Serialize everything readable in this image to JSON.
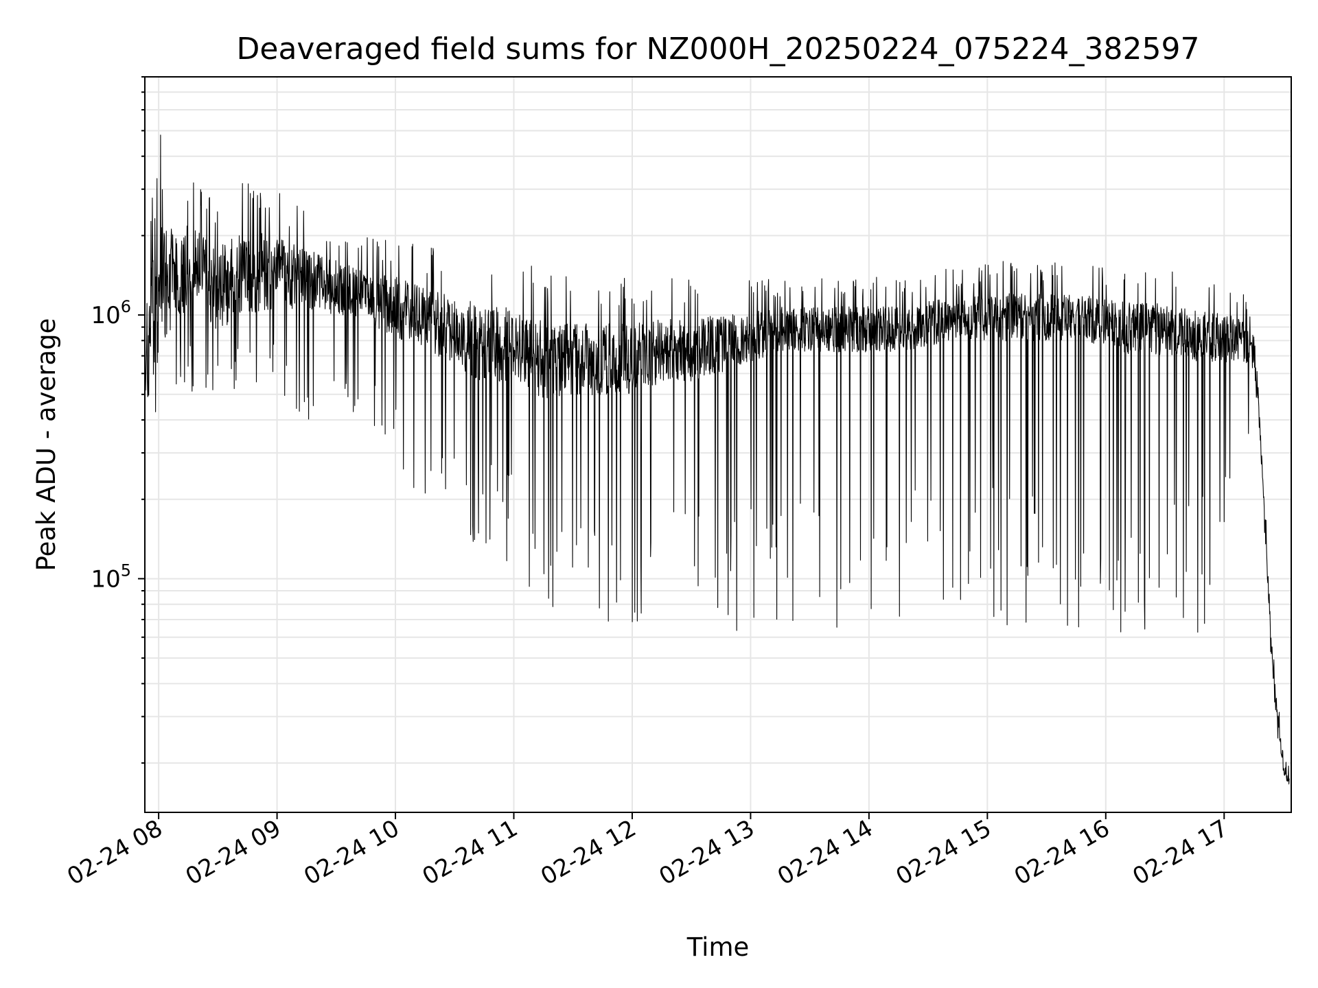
{
  "chart_data": {
    "type": "line",
    "title": "Deaveraged field sums for NZ000H_20250224_075224_382597",
    "xlabel": "Time",
    "ylabel": "Peak ADU - average",
    "x_tick_labels": [
      "02-24 08",
      "02-24 09",
      "02-24 10",
      "02-24 11",
      "02-24 12",
      "02-24 13",
      "02-24 14",
      "02-24 15",
      "02-24 16",
      "02-24 17"
    ],
    "y_tick_labels": [
      {
        "base": "10",
        "exp": "5",
        "value": 100000
      },
      {
        "base": "10",
        "exp": "6",
        "value": 1000000
      }
    ],
    "xlim": [
      "2025-02-24 07:53",
      "2025-02-24 17:34"
    ],
    "ylim": [
      13000,
      8000000
    ],
    "yscale": "log",
    "grid": true,
    "line_color": "#000000",
    "grid_color": "#e6e6e6",
    "series": [
      {
        "x": [
          "2025-02-24 07:53",
          "2025-02-24 08:00",
          "2025-02-24 08:15",
          "2025-02-24 08:30",
          "2025-02-24 08:45",
          "2025-02-24 09:00",
          "2025-02-24 09:15",
          "2025-02-24 09:30",
          "2025-02-24 09:45",
          "2025-02-24 10:00",
          "2025-02-24 10:15",
          "2025-02-24 10:30",
          "2025-02-24 10:45",
          "2025-02-24 11:00",
          "2025-02-24 11:15",
          "2025-02-24 11:30",
          "2025-02-24 11:45",
          "2025-02-24 12:00",
          "2025-02-24 12:15",
          "2025-02-24 12:30",
          "2025-02-24 12:45",
          "2025-02-24 13:00",
          "2025-02-24 13:15",
          "2025-02-24 13:30",
          "2025-02-24 13:45",
          "2025-02-24 14:00",
          "2025-02-24 14:15",
          "2025-02-24 14:30",
          "2025-02-24 14:45",
          "2025-02-24 15:00",
          "2025-02-24 15:15",
          "2025-02-24 15:30",
          "2025-02-24 15:45",
          "2025-02-24 16:00",
          "2025-02-24 16:15",
          "2025-02-24 16:30",
          "2025-02-24 16:45",
          "2025-02-24 17:00",
          "2025-02-24 17:10",
          "2025-02-24 17:15",
          "2025-02-24 17:18",
          "2025-02-24 17:21",
          "2025-02-24 17:24",
          "2025-02-24 17:27",
          "2025-02-24 17:30",
          "2025-02-24 17:33"
        ],
        "y": [
          700000,
          1300000,
          1600000,
          1300000,
          1500000,
          1500000,
          1400000,
          1300000,
          1200000,
          1100000,
          1000000,
          900000,
          800000,
          800000,
          700000,
          700000,
          700000,
          700000,
          750000,
          750000,
          800000,
          850000,
          900000,
          900000,
          900000,
          900000,
          900000,
          950000,
          1000000,
          1000000,
          1000000,
          1000000,
          1000000,
          950000,
          900000,
          900000,
          850000,
          850000,
          800000,
          700000,
          400000,
          150000,
          55000,
          30000,
          20000,
          18000
        ],
        "upper_envelope": [
          1800000,
          5000000,
          3500000,
          3000000,
          3500000,
          3000000,
          2500000,
          2200000,
          2000000,
          2000000,
          1800000,
          1800000,
          1700000,
          1600000,
          1500000,
          1400000,
          1400000,
          1400000,
          1400000,
          1400000,
          1400000,
          1400000,
          1400000,
          1400000,
          1400000,
          1400000,
          1400000,
          1500000,
          1500000,
          1600000,
          1600000,
          1600000,
          1600000,
          1500000,
          1500000,
          1500000,
          1400000,
          1400000,
          1200000,
          900000,
          500000,
          180000,
          70000,
          35000,
          24000,
          22000
        ],
        "lower_envelope": [
          300000,
          450000,
          500000,
          500000,
          500000,
          450000,
          400000,
          400000,
          400000,
          250000,
          200000,
          150000,
          120000,
          100000,
          80000,
          70000,
          70000,
          60000,
          60000,
          60000,
          60000,
          60000,
          60000,
          60000,
          60000,
          65000,
          70000,
          75000,
          75000,
          70000,
          65000,
          60000,
          60000,
          65000,
          60000,
          55000,
          60000,
          80000,
          300000,
          400000,
          300000,
          120000,
          45000,
          25000,
          16000,
          15000
        ]
      }
    ]
  }
}
